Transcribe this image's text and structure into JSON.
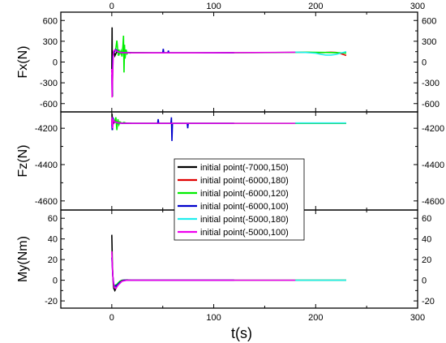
{
  "chart_data": {
    "type": "line",
    "xlabel": "t(s)",
    "xlim": [
      -50,
      300
    ],
    "xticks": [
      0,
      100,
      200,
      300
    ],
    "legend": {
      "placement": "center",
      "entries": [
        {
          "label": "initial point(-7000,150)",
          "color": "#000000"
        },
        {
          "label": "initial point(-6000,180)",
          "color": "#e00000"
        },
        {
          "label": "initial point(-6000,120)",
          "color": "#00ee00"
        },
        {
          "label": "initial point(-6000,100)",
          "color": "#0000cc"
        },
        {
          "label": "initial point(-5000,180)",
          "color": "#22eeee"
        },
        {
          "label": "initial point(-5000,100)",
          "color": "#ee00ee"
        }
      ]
    },
    "panels": [
      {
        "ylabel": "Fx(N)",
        "ylim": [
          -720,
          720
        ],
        "yticks": [
          -600,
          -300,
          0,
          300,
          600
        ],
        "series": [
          {
            "color": "#000000",
            "x": [
              0,
              0.3,
              0.6,
              1.0,
              1.5,
              2,
              3,
              4,
              5,
              6,
              8,
              10,
              15,
              20,
              40,
              60,
              80,
              100,
              120
            ],
            "y": [
              -150,
              500,
              -500,
              100,
              130,
              160,
              90,
              120,
              150,
              145,
              140,
              140,
              135,
              135,
              133,
              133,
              133,
              133,
              134
            ]
          },
          {
            "color": "#e00000",
            "x": [
              180,
              190,
              200,
              210,
              215,
              220,
              225,
              230
            ],
            "y": [
              142,
              140,
              135,
              138,
              142,
              138,
              120,
              95
            ]
          },
          {
            "color": "#00ee00",
            "x": [
              3,
              4,
              5,
              6,
              6.5,
              7,
              8,
              9,
              10,
              11,
              11.5,
              12,
              12.5,
              13,
              14,
              15,
              16,
              18,
              20,
              40,
              60,
              80,
              100,
              120,
              140,
              160,
              180,
              190,
              200,
              210,
              220,
              230
            ],
            "y": [
              150,
              200,
              310,
              150,
              90,
              180,
              120,
              160,
              80,
              250,
              380,
              -150,
              250,
              50,
              180,
              120,
              140,
              130,
              135,
              133,
              133,
              133,
              133,
              134,
              135,
              137,
              140,
              142,
              140,
              138,
              135,
              130
            ]
          },
          {
            "color": "#0000cc",
            "x": [
              0,
              0.4,
              1,
              2,
              3,
              4,
              6,
              8,
              10,
              20,
              30,
              40,
              50,
              50.5,
              51,
              55,
              55.5,
              56,
              60,
              80,
              100,
              120
            ],
            "y": [
              -180,
              -490,
              80,
              140,
              160,
              180,
              150,
              140,
              135,
              133,
              133,
              133,
              133,
              190,
              133,
              133,
              165,
              133,
              133,
              133,
              133,
              134
            ]
          },
          {
            "color": "#22eeee",
            "x": [
              180,
              190,
              200,
              205,
              210,
              215,
              220,
              225,
              230
            ],
            "y": [
              143,
              138,
              128,
              112,
              100,
              100,
              110,
              130,
              150
            ]
          },
          {
            "color": "#ee00ee",
            "x": [
              0,
              0.3,
              0.8,
              1.5,
              2,
              3,
              4,
              6,
              8,
              10,
              20,
              40,
              60,
              80,
              100,
              120,
              140,
              160,
              180
            ],
            "y": [
              -100,
              -510,
              -200,
              120,
              160,
              175,
              165,
              150,
              140,
              135,
              133,
              133,
              133,
              133,
              134,
              135,
              137,
              139,
              141
            ]
          }
        ]
      },
      {
        "ylabel": "Fz(N)",
        "ylim": [
          -4650,
          -4110
        ],
        "yticks": [
          -4600,
          -4400,
          -4200
        ],
        "series": [
          {
            "color": "#000000",
            "x": [
              0,
              0.3,
              0.6,
              1,
              2,
              3,
              5,
              8,
              10,
              20,
              60,
              120
            ],
            "y": [
              -4180,
              -4120,
              -4210,
              -4150,
              -4170,
              -4160,
              -4165,
              -4170,
              -4172,
              -4173,
              -4173,
              -4173
            ]
          },
          {
            "color": "#e00000",
            "x": [
              180,
              200,
              230
            ],
            "y": [
              -4173,
              -4173,
              -4173
            ]
          },
          {
            "color": "#00ee00",
            "x": [
              3,
              4,
              5,
              6,
              7,
              8,
              10,
              12,
              15,
              20,
              60,
              120,
              180,
              230
            ],
            "y": [
              -4160,
              -4140,
              -4210,
              -4150,
              -4180,
              -4165,
              -4172,
              -4168,
              -4173,
              -4173,
              -4173,
              -4173,
              -4173,
              -4173
            ]
          },
          {
            "color": "#0000cc",
            "x": [
              0,
              0.4,
              1,
              2,
              4,
              8,
              20,
              45,
              45.5,
              46,
              58,
              58.5,
              59,
              59.5,
              60,
              74,
              74.5,
              75,
              100,
              120
            ],
            "y": [
              -4170,
              -4210,
              -4140,
              -4160,
              -4168,
              -4172,
              -4173,
              -4173,
              -4150,
              -4173,
              -4173,
              -4140,
              -4270,
              -4175,
              -4173,
              -4173,
              -4200,
              -4173,
              -4173,
              -4173
            ]
          },
          {
            "color": "#22eeee",
            "x": [
              180,
              200,
              230
            ],
            "y": [
              -4171,
              -4171,
              -4171
            ]
          },
          {
            "color": "#ee00ee",
            "x": [
              0,
              0.3,
              0.8,
              1.5,
              3,
              6,
              10,
              20,
              60,
              120,
              180
            ],
            "y": [
              -4180,
              -4140,
              -4200,
              -4155,
              -4165,
              -4170,
              -4172,
              -4173,
              -4173,
              -4173,
              -4173
            ]
          }
        ]
      },
      {
        "ylabel": "My(Nm)",
        "ylim": [
          -27,
          68
        ],
        "yticks": [
          -20,
          0,
          20,
          40,
          60
        ],
        "series": [
          {
            "color": "#000000",
            "x": [
              0,
              0.2,
              0.5,
              1,
              1.5,
              2,
              3,
              4,
              5,
              6,
              8,
              10,
              15,
              20,
              60,
              120
            ],
            "y": [
              44,
              35,
              18,
              5,
              -4,
              -8,
              -10,
              -8,
              -6,
              -3,
              -1,
              0,
              0.3,
              0,
              0,
              0
            ]
          },
          {
            "color": "#e00000",
            "x": [
              180,
              200,
              230
            ],
            "y": [
              0,
              0,
              0
            ]
          },
          {
            "color": "#00ee00",
            "x": [
              3,
              5,
              8,
              12,
              20,
              60,
              120,
              180,
              230
            ],
            "y": [
              -5,
              -4,
              -1,
              0,
              0,
              0,
              0,
              0,
              0
            ]
          },
          {
            "color": "#0000cc",
            "x": [
              0,
              0.5,
              1,
              2,
              3,
              5,
              8,
              12,
              20,
              60,
              120
            ],
            "y": [
              22,
              14,
              4,
              -4,
              -6,
              -5,
              -2,
              0,
              0,
              0,
              0
            ]
          },
          {
            "color": "#22eeee",
            "x": [
              180,
              200,
              230
            ],
            "y": [
              0,
              0,
              0
            ]
          },
          {
            "color": "#ee00ee",
            "x": [
              0,
              0.3,
              0.8,
              1.5,
              2.5,
              4,
              6,
              10,
              15,
              20,
              60,
              120,
              180
            ],
            "y": [
              28,
              20,
              8,
              -2,
              -7,
              -8,
              -5,
              -1,
              0,
              0,
              0,
              0,
              0
            ]
          }
        ]
      }
    ]
  }
}
